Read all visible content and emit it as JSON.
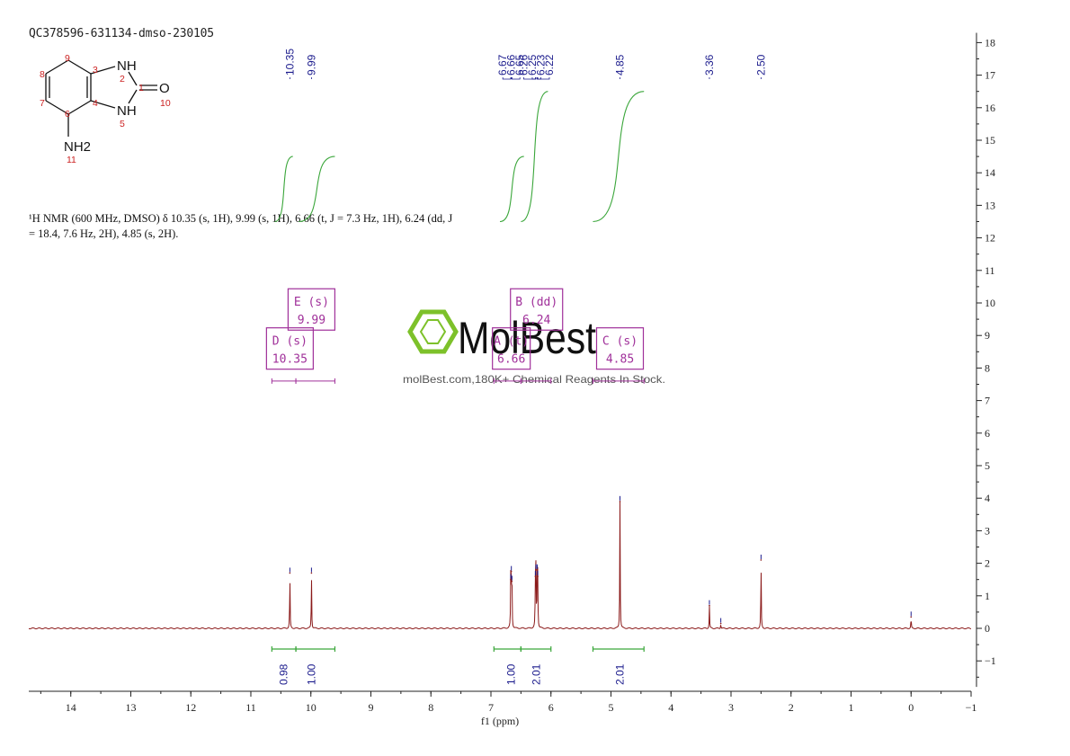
{
  "sample_id": "QC378596-631134-dmso-230105",
  "nmr_description": {
    "line1": "¹H NMR (600 MHz, DMSO) δ 10.35 (s, 1H), 9.99 (s, 1H), 6.66 (t, J = 7.3 Hz, 1H), 6.24 (dd, J",
    "line2": "= 18.4, 7.6 Hz, 2H), 4.85 (s, 2H)."
  },
  "structure": {
    "atoms": [
      "NH",
      "NH",
      "O",
      "NH2"
    ],
    "numbers": [
      "1",
      "2",
      "3",
      "4",
      "5",
      "6",
      "7",
      "8",
      "9",
      "10",
      "11"
    ]
  },
  "watermark": {
    "brand": "MolBest",
    "tagline": "molBest.com,180K+ Chemical Reagents In Stock."
  },
  "chart_data": {
    "type": "line",
    "title": "",
    "xlabel": "f1 (ppm)",
    "ylabel": "",
    "xlim": [
      14.7,
      -1.0
    ],
    "ylim": [
      -1.8,
      18.3
    ],
    "x_ticks": [
      "14",
      "13",
      "12",
      "11",
      "10",
      "9",
      "8",
      "7",
      "6",
      "5",
      "4",
      "3",
      "2",
      "1",
      "0",
      "−1"
    ],
    "y_ticks": [
      "18",
      "17",
      "16",
      "15",
      "14",
      "13",
      "12",
      "11",
      "10",
      "9",
      "8",
      "7",
      "6",
      "5",
      "4",
      "3",
      "2",
      "1",
      "0",
      "−1"
    ],
    "peaks": [
      {
        "ppm": 10.35,
        "height": 1.7
      },
      {
        "ppm": 9.99,
        "height": 1.7
      },
      {
        "ppm": 6.67,
        "height": 1.5
      },
      {
        "ppm": 6.66,
        "height": 1.75
      },
      {
        "ppm": 6.65,
        "height": 1.45
      },
      {
        "ppm": 6.26,
        "height": 1.6
      },
      {
        "ppm": 6.25,
        "height": 1.8
      },
      {
        "ppm": 6.23,
        "height": 1.8
      },
      {
        "ppm": 6.22,
        "height": 1.6
      },
      {
        "ppm": 4.85,
        "height": 3.9
      },
      {
        "ppm": 3.36,
        "height": 0.7
      },
      {
        "ppm": 3.17,
        "height": 0.15
      },
      {
        "ppm": 2.5,
        "height": 2.1
      },
      {
        "ppm": 0.0,
        "height": 0.35
      }
    ],
    "peak_labels": [
      {
        "text": "10.35",
        "ppm": 10.35
      },
      {
        "text": "9.99",
        "ppm": 9.99
      },
      {
        "text": "6.67",
        "ppm": 6.67
      },
      {
        "text": "6.66",
        "ppm": 6.66
      },
      {
        "text": "6.65",
        "ppm": 6.65
      },
      {
        "text": "6.26",
        "ppm": 6.26
      },
      {
        "text": "6.25",
        "ppm": 6.25
      },
      {
        "text": "6.23",
        "ppm": 6.23
      },
      {
        "text": "6.22",
        "ppm": 6.22
      },
      {
        "text": "4.85",
        "ppm": 4.85
      },
      {
        "text": "3.36",
        "ppm": 3.36
      },
      {
        "text": "2.50",
        "ppm": 2.5
      }
    ],
    "integrals": [
      {
        "value": "0.98",
        "from": 10.65,
        "to": 10.25,
        "center": 10.45
      },
      {
        "value": "1.00",
        "from": 10.25,
        "to": 9.6,
        "center": 9.99
      },
      {
        "value": "1.00",
        "from": 6.95,
        "to": 6.5,
        "center": 6.66
      },
      {
        "value": "2.01",
        "from": 6.5,
        "to": 6.0,
        "center": 6.24
      },
      {
        "value": "2.01",
        "from": 5.3,
        "to": 4.45,
        "center": 4.85
      }
    ],
    "integral_curves": [
      {
        "from": 10.6,
        "to": 10.3,
        "y_start": 12.5,
        "y_end": 14.5
      },
      {
        "from": 10.2,
        "to": 9.6,
        "y_start": 12.5,
        "y_end": 14.5
      },
      {
        "from": 6.85,
        "to": 6.45,
        "y_start": 12.5,
        "y_end": 14.5
      },
      {
        "from": 6.5,
        "to": 6.05,
        "y_start": 12.5,
        "y_end": 16.5
      },
      {
        "from": 5.3,
        "to": 4.45,
        "y_start": 12.5,
        "y_end": 16.5
      }
    ],
    "multiplets": [
      {
        "id": "D",
        "type": "s",
        "shift": "10.35",
        "box_ppm": 10.35,
        "box_y": 8.6,
        "range": [
          10.65,
          10.25
        ]
      },
      {
        "id": "E",
        "type": "s",
        "shift": "9.99",
        "box_ppm": 9.99,
        "box_y": 9.8,
        "range": [
          10.25,
          9.6
        ]
      },
      {
        "id": "A",
        "type": "t",
        "shift": "6.66",
        "box_ppm": 6.66,
        "box_y": 8.6,
        "range": [
          6.95,
          6.5
        ]
      },
      {
        "id": "B",
        "type": "dd",
        "shift": "6.24",
        "box_ppm": 6.24,
        "box_y": 9.8,
        "range": [
          6.5,
          6.0
        ]
      },
      {
        "id": "C",
        "type": "s",
        "shift": "4.85",
        "box_ppm": 4.85,
        "box_y": 8.6,
        "range": [
          5.3,
          4.45
        ]
      }
    ],
    "colors": {
      "spectrum": "#8b1a1a",
      "integral": "#3aa63a",
      "labels": "#1a1a8c",
      "multiplet": "#a0309a",
      "watermark": "#7dc12a"
    }
  }
}
